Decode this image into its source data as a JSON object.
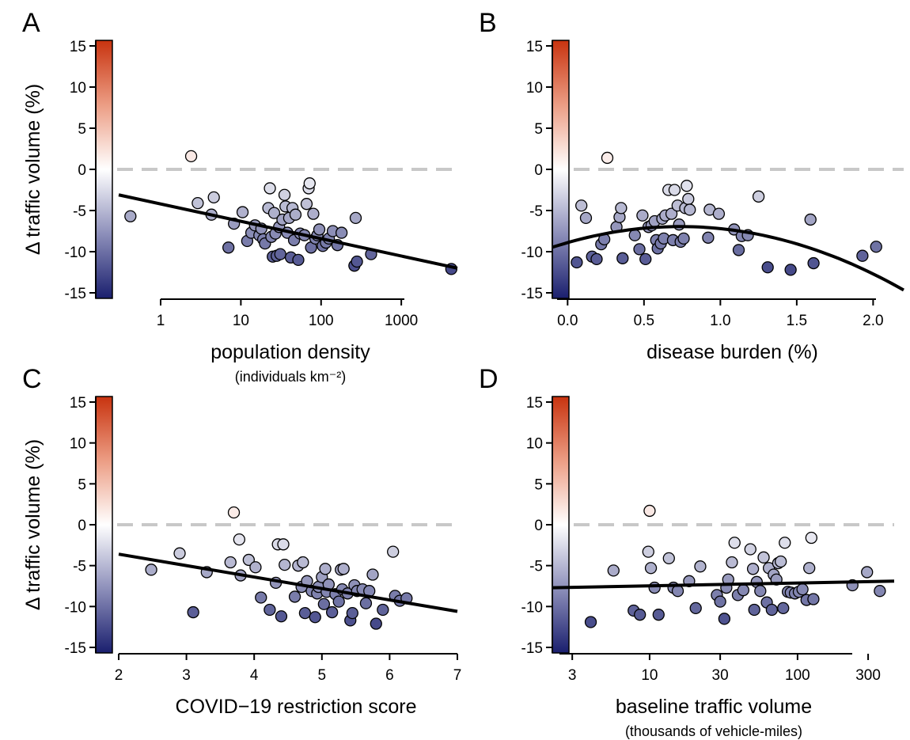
{
  "chart_data": [
    {
      "panel": "A",
      "type": "scatter",
      "ylabel": "Δ traffic volume (%)",
      "xlabel": "population density",
      "xlabel_sub": "(individuals km⁻²)",
      "xscale": "log",
      "xlim": [
        0.3,
        5000
      ],
      "ylim": [
        -15,
        15
      ],
      "xticks": [
        1,
        10,
        100,
        1000
      ],
      "xtick_labels": [
        "1",
        "10",
        "100",
        "1000"
      ],
      "yticks": [
        15,
        10,
        5,
        0,
        -5,
        -10,
        -15
      ],
      "colorbar": {
        "min": -15,
        "max": 15,
        "low": "#1a1f6e",
        "mid": "#ffffff",
        "high": "#c8330f"
      },
      "fit": {
        "kind": "line",
        "points": [
          [
            0.3,
            -3.1
          ],
          [
            5000,
            -12.0
          ]
        ]
      },
      "points": [
        {
          "x": 0.42,
          "y": -5.7
        },
        {
          "x": 2.4,
          "y": 1.6
        },
        {
          "x": 2.9,
          "y": -4.1
        },
        {
          "x": 4.3,
          "y": -5.5
        },
        {
          "x": 4.6,
          "y": -3.4
        },
        {
          "x": 7.0,
          "y": -9.5
        },
        {
          "x": 8.2,
          "y": -6.6
        },
        {
          "x": 10.5,
          "y": -5.2
        },
        {
          "x": 12.0,
          "y": -8.7
        },
        {
          "x": 13.5,
          "y": -7.7
        },
        {
          "x": 15.0,
          "y": -6.8
        },
        {
          "x": 17.0,
          "y": -8.0
        },
        {
          "x": 18.0,
          "y": -7.2
        },
        {
          "x": 19.0,
          "y": -8.5
        },
        {
          "x": 20.0,
          "y": -9.0
        },
        {
          "x": 22.0,
          "y": -4.7
        },
        {
          "x": 23.0,
          "y": -2.3
        },
        {
          "x": 24.0,
          "y": -8.2
        },
        {
          "x": 25.0,
          "y": -10.6
        },
        {
          "x": 26.0,
          "y": -5.3
        },
        {
          "x": 27.0,
          "y": -7.8
        },
        {
          "x": 28.0,
          "y": -10.5
        },
        {
          "x": 30.0,
          "y": -7.0
        },
        {
          "x": 31.0,
          "y": -10.3
        },
        {
          "x": 33.0,
          "y": -6.1
        },
        {
          "x": 35.0,
          "y": -3.1
        },
        {
          "x": 36.0,
          "y": -4.5
        },
        {
          "x": 38.0,
          "y": -7.7
        },
        {
          "x": 40.0,
          "y": -5.9
        },
        {
          "x": 42.0,
          "y": -10.7
        },
        {
          "x": 44.0,
          "y": -4.7
        },
        {
          "x": 46.0,
          "y": -8.6
        },
        {
          "x": 48.0,
          "y": -5.5
        },
        {
          "x": 52.0,
          "y": -11.0
        },
        {
          "x": 55.0,
          "y": -7.8
        },
        {
          "x": 62.0,
          "y": -8.0
        },
        {
          "x": 66.0,
          "y": -4.2
        },
        {
          "x": 70.0,
          "y": -2.3
        },
        {
          "x": 72.0,
          "y": -1.7
        },
        {
          "x": 75.0,
          "y": -9.5
        },
        {
          "x": 80.0,
          "y": -5.4
        },
        {
          "x": 85.0,
          "y": -8.4
        },
        {
          "x": 90.0,
          "y": -8.0
        },
        {
          "x": 95.0,
          "y": -7.3
        },
        {
          "x": 105.0,
          "y": -9.3
        },
        {
          "x": 115.0,
          "y": -8.9
        },
        {
          "x": 125.0,
          "y": -8.4
        },
        {
          "x": 140.0,
          "y": -7.5
        },
        {
          "x": 160.0,
          "y": -9.2
        },
        {
          "x": 180.0,
          "y": -7.7
        },
        {
          "x": 260.0,
          "y": -11.7
        },
        {
          "x": 270.0,
          "y": -5.9
        },
        {
          "x": 280.0,
          "y": -11.2
        },
        {
          "x": 420.0,
          "y": -10.3
        },
        {
          "x": 4200.0,
          "y": -12.1
        }
      ]
    },
    {
      "panel": "B",
      "type": "scatter",
      "ylabel": "",
      "xlabel": "disease burden (%)",
      "xlabel_sub": "",
      "xscale": "linear",
      "xlim": [
        -0.1,
        2.2
      ],
      "ylim": [
        -15,
        15
      ],
      "xticks": [
        0,
        0.5,
        1,
        1.5,
        2
      ],
      "xtick_labels": [
        "0.0",
        "0.5",
        "1.0",
        "1.5",
        "2.0"
      ],
      "yticks": [
        15,
        10,
        5,
        0,
        -5,
        -10,
        -15
      ],
      "colorbar": {
        "min": -15,
        "max": 15,
        "low": "#1a1f6e",
        "mid": "#ffffff",
        "high": "#c8330f"
      },
      "fit": {
        "kind": "quadratic",
        "a": -3.6,
        "b": 5.3,
        "c": -8.9
      },
      "points": [
        {
          "x": 0.06,
          "y": -11.3
        },
        {
          "x": 0.09,
          "y": -4.4
        },
        {
          "x": 0.12,
          "y": -5.9
        },
        {
          "x": 0.16,
          "y": -10.6
        },
        {
          "x": 0.19,
          "y": -10.9
        },
        {
          "x": 0.22,
          "y": -9.1
        },
        {
          "x": 0.24,
          "y": -8.5
        },
        {
          "x": 0.26,
          "y": 1.4
        },
        {
          "x": 0.32,
          "y": -7.0
        },
        {
          "x": 0.34,
          "y": -5.8
        },
        {
          "x": 0.35,
          "y": -4.7
        },
        {
          "x": 0.36,
          "y": -10.8
        },
        {
          "x": 0.44,
          "y": -8.0
        },
        {
          "x": 0.47,
          "y": -9.7
        },
        {
          "x": 0.49,
          "y": -5.6
        },
        {
          "x": 0.51,
          "y": -10.9
        },
        {
          "x": 0.53,
          "y": -7.0
        },
        {
          "x": 0.55,
          "y": -6.8
        },
        {
          "x": 0.57,
          "y": -6.3
        },
        {
          "x": 0.58,
          "y": -8.6
        },
        {
          "x": 0.59,
          "y": -9.6
        },
        {
          "x": 0.61,
          "y": -9.0
        },
        {
          "x": 0.62,
          "y": -6.0
        },
        {
          "x": 0.63,
          "y": -8.4
        },
        {
          "x": 0.64,
          "y": -5.6
        },
        {
          "x": 0.66,
          "y": -2.5
        },
        {
          "x": 0.68,
          "y": -5.4
        },
        {
          "x": 0.69,
          "y": -8.6
        },
        {
          "x": 0.7,
          "y": -2.5
        },
        {
          "x": 0.72,
          "y": -4.4
        },
        {
          "x": 0.73,
          "y": -6.7
        },
        {
          "x": 0.74,
          "y": -8.8
        },
        {
          "x": 0.76,
          "y": -8.4
        },
        {
          "x": 0.77,
          "y": -4.7
        },
        {
          "x": 0.78,
          "y": -2.0
        },
        {
          "x": 0.79,
          "y": -3.6
        },
        {
          "x": 0.8,
          "y": -4.9
        },
        {
          "x": 0.92,
          "y": -8.3
        },
        {
          "x": 0.93,
          "y": -4.9
        },
        {
          "x": 0.99,
          "y": -5.4
        },
        {
          "x": 1.09,
          "y": -7.3
        },
        {
          "x": 1.12,
          "y": -9.8
        },
        {
          "x": 1.14,
          "y": -8.1
        },
        {
          "x": 1.18,
          "y": -8.0
        },
        {
          "x": 1.25,
          "y": -3.3
        },
        {
          "x": 1.31,
          "y": -11.9
        },
        {
          "x": 1.46,
          "y": -12.2
        },
        {
          "x": 1.59,
          "y": -6.1
        },
        {
          "x": 1.61,
          "y": -11.4
        },
        {
          "x": 1.93,
          "y": -10.5
        },
        {
          "x": 2.02,
          "y": -9.4
        }
      ]
    },
    {
      "panel": "C",
      "type": "scatter",
      "ylabel": "Δ traffic volume (%)",
      "xlabel": "COVID−19 restriction score",
      "xlabel_sub": "",
      "xscale": "linear",
      "xlim": [
        2,
        7
      ],
      "ylim": [
        -15,
        15
      ],
      "xticks": [
        2,
        3,
        4,
        5,
        6,
        7
      ],
      "xtick_labels": [
        "2",
        "3",
        "4",
        "5",
        "6",
        "7"
      ],
      "yticks": [
        15,
        10,
        5,
        0,
        -5,
        -10,
        -15
      ],
      "colorbar": {
        "min": -15,
        "max": 15,
        "low": "#1a1f6e",
        "mid": "#ffffff",
        "high": "#c8330f"
      },
      "fit": {
        "kind": "line",
        "points": [
          [
            2,
            -3.6
          ],
          [
            7,
            -10.6
          ]
        ]
      },
      "points": [
        {
          "x": 2.48,
          "y": -5.5
        },
        {
          "x": 2.9,
          "y": -3.5
        },
        {
          "x": 3.1,
          "y": -10.7
        },
        {
          "x": 3.3,
          "y": -5.8
        },
        {
          "x": 3.65,
          "y": -4.6
        },
        {
          "x": 3.7,
          "y": 1.5
        },
        {
          "x": 3.78,
          "y": -1.8
        },
        {
          "x": 3.8,
          "y": -6.2
        },
        {
          "x": 3.92,
          "y": -4.3
        },
        {
          "x": 4.02,
          "y": -5.2
        },
        {
          "x": 4.1,
          "y": -8.9
        },
        {
          "x": 4.23,
          "y": -10.4
        },
        {
          "x": 4.32,
          "y": -7.1
        },
        {
          "x": 4.35,
          "y": -2.4
        },
        {
          "x": 4.4,
          "y": -11.2
        },
        {
          "x": 4.43,
          "y": -2.4
        },
        {
          "x": 4.45,
          "y": -4.9
        },
        {
          "x": 4.6,
          "y": -8.8
        },
        {
          "x": 4.65,
          "y": -5.0
        },
        {
          "x": 4.7,
          "y": -7.6
        },
        {
          "x": 4.72,
          "y": -4.6
        },
        {
          "x": 4.75,
          "y": -10.8
        },
        {
          "x": 4.78,
          "y": -6.9
        },
        {
          "x": 4.85,
          "y": -8.1
        },
        {
          "x": 4.9,
          "y": -11.3
        },
        {
          "x": 4.93,
          "y": -8.4
        },
        {
          "x": 4.95,
          "y": -7.6
        },
        {
          "x": 5.0,
          "y": -6.4
        },
        {
          "x": 5.03,
          "y": -9.7
        },
        {
          "x": 5.05,
          "y": -5.4
        },
        {
          "x": 5.07,
          "y": -8.2
        },
        {
          "x": 5.1,
          "y": -7.3
        },
        {
          "x": 5.15,
          "y": -10.7
        },
        {
          "x": 5.2,
          "y": -8.5
        },
        {
          "x": 5.25,
          "y": -9.4
        },
        {
          "x": 5.28,
          "y": -5.5
        },
        {
          "x": 5.3,
          "y": -7.9
        },
        {
          "x": 5.32,
          "y": -5.4
        },
        {
          "x": 5.38,
          "y": -8.4
        },
        {
          "x": 5.42,
          "y": -11.7
        },
        {
          "x": 5.45,
          "y": -10.8
        },
        {
          "x": 5.48,
          "y": -7.4
        },
        {
          "x": 5.52,
          "y": -8.1
        },
        {
          "x": 5.6,
          "y": -7.9
        },
        {
          "x": 5.65,
          "y": -9.6
        },
        {
          "x": 5.7,
          "y": -8.1
        },
        {
          "x": 5.75,
          "y": -6.1
        },
        {
          "x": 5.8,
          "y": -12.1
        },
        {
          "x": 5.9,
          "y": -10.4
        },
        {
          "x": 6.05,
          "y": -3.3
        },
        {
          "x": 6.08,
          "y": -8.7
        },
        {
          "x": 6.15,
          "y": -9.3
        },
        {
          "x": 6.25,
          "y": -9.0
        }
      ]
    },
    {
      "panel": "D",
      "type": "scatter",
      "ylabel": "",
      "xlabel": "baseline traffic volume",
      "xlabel_sub": "(thousands of vehicle-miles)",
      "xscale": "log",
      "xlim": [
        2.2,
        450
      ],
      "ylim": [
        -15,
        15
      ],
      "xticks": [
        3,
        10,
        30,
        100,
        300
      ],
      "xtick_labels": [
        "3",
        "10",
        "30",
        "100",
        "300"
      ],
      "yticks": [
        15,
        10,
        5,
        0,
        -5,
        -10,
        -15
      ],
      "colorbar": {
        "min": -15,
        "max": 15,
        "low": "#1a1f6e",
        "mid": "#ffffff",
        "high": "#c8330f"
      },
      "fit": {
        "kind": "line",
        "points": [
          [
            2.2,
            -7.7
          ],
          [
            450,
            -6.9
          ]
        ]
      },
      "points": [
        {
          "x": 4.0,
          "y": -11.9
        },
        {
          "x": 5.7,
          "y": -5.6
        },
        {
          "x": 7.8,
          "y": -10.5
        },
        {
          "x": 8.6,
          "y": -11.0
        },
        {
          "x": 9.8,
          "y": -3.3
        },
        {
          "x": 10.0,
          "y": 1.7
        },
        {
          "x": 10.2,
          "y": -5.3
        },
        {
          "x": 10.8,
          "y": -7.7
        },
        {
          "x": 11.5,
          "y": -11.0
        },
        {
          "x": 13.5,
          "y": -4.1
        },
        {
          "x": 14.5,
          "y": -7.7
        },
        {
          "x": 15.5,
          "y": -8.1
        },
        {
          "x": 18.5,
          "y": -6.9
        },
        {
          "x": 20.5,
          "y": -10.2
        },
        {
          "x": 22.0,
          "y": -5.1
        },
        {
          "x": 28.5,
          "y": -8.6
        },
        {
          "x": 30.0,
          "y": -9.4
        },
        {
          "x": 32.0,
          "y": -11.5
        },
        {
          "x": 33.0,
          "y": -7.7
        },
        {
          "x": 34.0,
          "y": -6.7
        },
        {
          "x": 36.0,
          "y": -4.6
        },
        {
          "x": 37.5,
          "y": -2.2
        },
        {
          "x": 39.5,
          "y": -8.6
        },
        {
          "x": 43.0,
          "y": -8.0
        },
        {
          "x": 48.0,
          "y": -3.0
        },
        {
          "x": 50.0,
          "y": -5.4
        },
        {
          "x": 51.0,
          "y": -10.4
        },
        {
          "x": 53.0,
          "y": -7.0
        },
        {
          "x": 56.0,
          "y": -8.1
        },
        {
          "x": 59.0,
          "y": -4.0
        },
        {
          "x": 62.0,
          "y": -9.5
        },
        {
          "x": 64.0,
          "y": -5.3
        },
        {
          "x": 67.0,
          "y": -10.4
        },
        {
          "x": 69.0,
          "y": -6.1
        },
        {
          "x": 72.0,
          "y": -6.7
        },
        {
          "x": 74.0,
          "y": -4.7
        },
        {
          "x": 77.0,
          "y": -4.5
        },
        {
          "x": 80.0,
          "y": -10.2
        },
        {
          "x": 82.0,
          "y": -2.2
        },
        {
          "x": 86.0,
          "y": -8.2
        },
        {
          "x": 90.0,
          "y": -8.3
        },
        {
          "x": 96.0,
          "y": -8.4
        },
        {
          "x": 102.0,
          "y": -8.2
        },
        {
          "x": 108.0,
          "y": -7.9
        },
        {
          "x": 115.0,
          "y": -9.2
        },
        {
          "x": 120.0,
          "y": -5.3
        },
        {
          "x": 124.0,
          "y": -1.6
        },
        {
          "x": 128.0,
          "y": -9.1
        },
        {
          "x": 235.0,
          "y": -7.4
        },
        {
          "x": 295.0,
          "y": -5.8
        },
        {
          "x": 360.0,
          "y": -8.1
        }
      ]
    }
  ]
}
